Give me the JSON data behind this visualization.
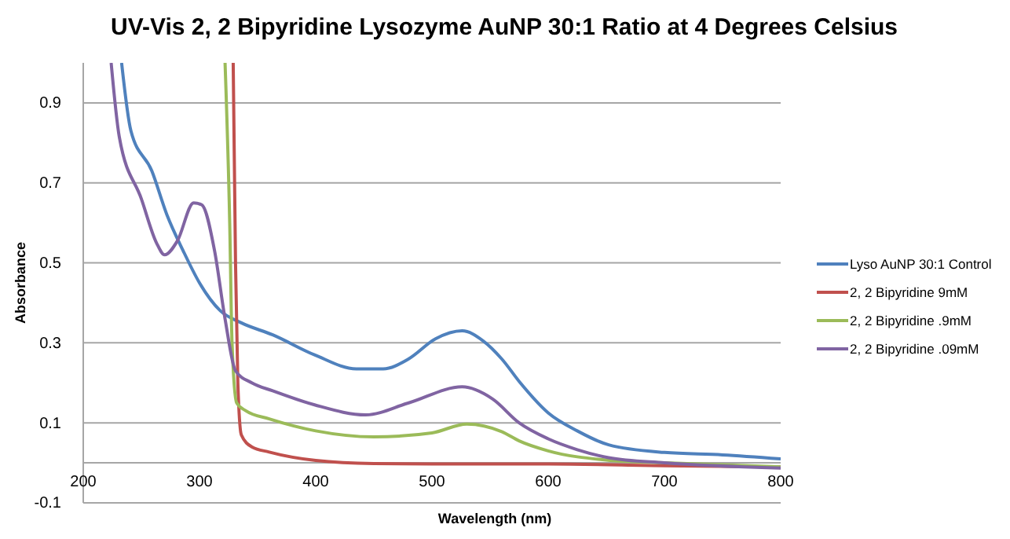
{
  "chart_data": {
    "type": "line",
    "title": "UV-Vis 2, 2 Bipyridine Lysozyme AuNP 30:1 Ratio at 4 Degrees Celsius",
    "xlabel": "Wavelength (nm)",
    "ylabel": "Absorbance",
    "xlim": [
      200,
      800
    ],
    "xticks": [
      200,
      300,
      400,
      500,
      600,
      700,
      800
    ],
    "ylim": [
      -0.1,
      1.0
    ],
    "yticks": [
      -0.1,
      {
        "value": 0,
        "label": null
      },
      0.1,
      0.3,
      0.5,
      0.7,
      0.9
    ],
    "grid": "y",
    "legend": "right",
    "line_style": "solid",
    "marker": "none",
    "series": [
      {
        "name": "Lyso AuNP 30:1 Control",
        "color": "#4f81bd",
        "x": [
          233,
          241,
          259,
          272,
          286,
          300,
          318,
          336,
          363,
          399,
          435,
          458,
          480,
          503,
          526,
          544,
          560,
          576,
          600,
          625,
          652,
          700,
          750,
          800
        ],
        "values": [
          1.0,
          0.83,
          0.73,
          0.62,
          0.53,
          0.45,
          0.38,
          0.35,
          0.32,
          0.27,
          0.235,
          0.235,
          0.26,
          0.31,
          0.33,
          0.305,
          0.26,
          0.2,
          0.125,
          0.08,
          0.045,
          0.026,
          0.02,
          0.01
        ]
      },
      {
        "name": "2, 2 Bipyridine 9mM",
        "color": "#c0504d",
        "x": [
          329,
          331,
          333,
          336,
          345,
          360,
          400,
          450,
          500,
          600,
          700,
          800
        ],
        "values": [
          1.0,
          0.5,
          0.2,
          0.07,
          0.04,
          0.027,
          0.006,
          -0.002,
          -0.003,
          -0.003,
          -0.007,
          -0.01
        ]
      },
      {
        "name": "2, 2 Bipyridine .9mM",
        "color": "#9bbb59",
        "x": [
          322,
          326,
          328,
          332,
          340,
          360,
          400,
          450,
          500,
          530,
          560,
          575,
          600,
          650,
          700,
          800
        ],
        "values": [
          1.0,
          0.6,
          0.3,
          0.15,
          0.13,
          0.11,
          0.08,
          0.065,
          0.075,
          0.097,
          0.078,
          0.055,
          0.03,
          0.007,
          0.0,
          -0.01
        ]
      },
      {
        "name": "2, 2 Bipyridine .09mM",
        "color": "#8064a2",
        "x": [
          224,
          231,
          250,
          263,
          270,
          281,
          295,
          302,
          313,
          322,
          331,
          345,
          363,
          399,
          443,
          480,
          526,
          552,
          575,
          600,
          625,
          652,
          700,
          800
        ],
        "values": [
          1.0,
          0.815,
          0.66,
          0.55,
          0.52,
          0.555,
          0.65,
          0.645,
          0.53,
          0.36,
          0.23,
          0.2,
          0.18,
          0.145,
          0.12,
          0.15,
          0.19,
          0.16,
          0.1,
          0.06,
          0.033,
          0.013,
          0.0,
          -0.013
        ]
      }
    ]
  }
}
